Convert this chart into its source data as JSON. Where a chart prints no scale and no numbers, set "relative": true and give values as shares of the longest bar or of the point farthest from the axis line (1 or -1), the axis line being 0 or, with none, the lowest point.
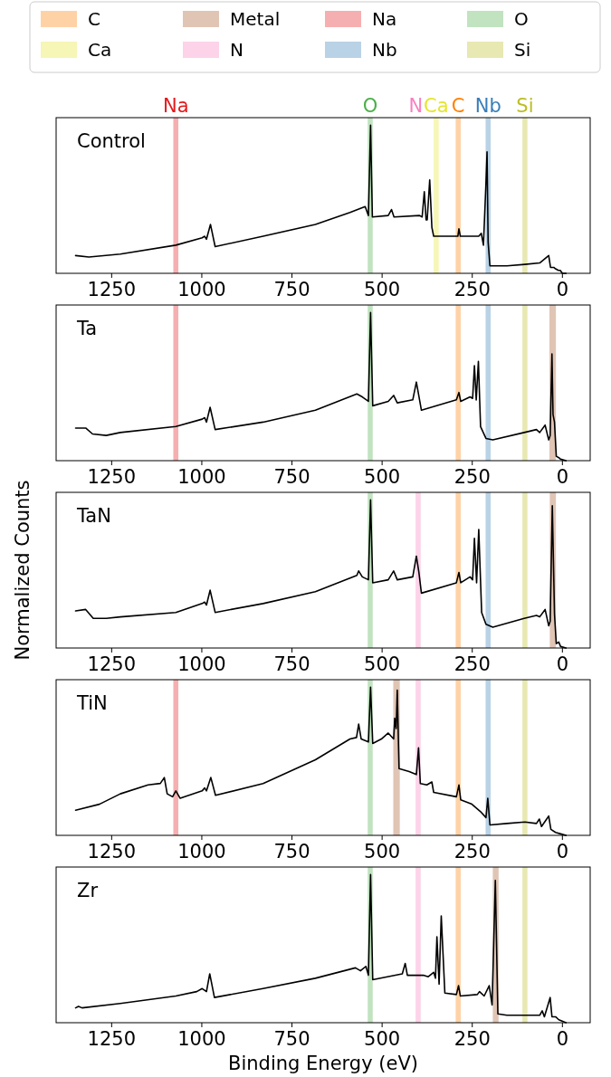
{
  "chart_data": [
    {
      "type": "other",
      "legend": "top",
      "series": [
        {
          "name": "C",
          "color": "#ff7f00"
        },
        {
          "name": "Ca",
          "color": "#e5e52e"
        },
        {
          "name": "Metal",
          "color": "#a65628"
        },
        {
          "name": "N",
          "color": "#f781bf"
        },
        {
          "name": "Na",
          "color": "#e41a1c"
        },
        {
          "name": "Nb",
          "color": "#377eb8"
        },
        {
          "name": "O",
          "color": "#4daf4a"
        },
        {
          "name": "Si",
          "color": "#bcbd22"
        }
      ]
    },
    {
      "type": "line",
      "title": "Control",
      "relative": true,
      "color": "#000000",
      "xlim": [
        1404,
        -77
      ],
      "xticks": [
        1250,
        1000,
        750,
        500,
        250,
        0
      ],
      "x": [
        1350,
        1313,
        1226,
        1072,
        999,
        992,
        987,
        976,
        963,
        830,
        685,
        589,
        547,
        538,
        532,
        527,
        483,
        474,
        467,
        396,
        389,
        383,
        378,
        375,
        368,
        362,
        357,
        290,
        287,
        283,
        232,
        225,
        219,
        212,
        209,
        206,
        201,
        154,
        104,
        63,
        38,
        33,
        24,
        19,
        11,
        6,
        0,
        -10
      ],
      "values": [
        0.12,
        0.11,
        0.13,
        0.19,
        0.24,
        0.25,
        0.23,
        0.33,
        0.18,
        0.25,
        0.33,
        0.41,
        0.45,
        0.39,
        1.0,
        0.38,
        0.39,
        0.43,
        0.38,
        0.39,
        0.38,
        0.55,
        0.36,
        0.36,
        0.63,
        0.31,
        0.25,
        0.25,
        0.3,
        0.25,
        0.25,
        0.27,
        0.19,
        0.61,
        0.82,
        0.21,
        0.05,
        0.05,
        0.06,
        0.07,
        0.12,
        0.04,
        0.04,
        0.03,
        0.02,
        0.02,
        0.0,
        0.0
      ],
      "bands": [
        {
          "axis": "x",
          "from": 1065,
          "to": 1079,
          "label": "Na",
          "color": "#e41a1c"
        },
        {
          "axis": "x",
          "from": 526,
          "to": 540,
          "label": "O",
          "color": "#4daf4a"
        },
        {
          "axis": "x",
          "from": 343,
          "to": 357,
          "label": "Ca",
          "color": "#e5e52e"
        },
        {
          "axis": "x",
          "from": 282,
          "to": 296,
          "label": "C",
          "color": "#ff7f00"
        },
        {
          "axis": "x",
          "from": 199,
          "to": 213,
          "label": "Nb",
          "color": "#377eb8"
        },
        {
          "axis": "x",
          "from": 97,
          "to": 111,
          "label": "Si",
          "color": "#bcbd22"
        }
      ],
      "annotations": [
        "N"
      ]
    },
    {
      "type": "line",
      "title": "Ta",
      "relative": true,
      "color": "#000000",
      "xlim": [
        1404,
        -77
      ],
      "xticks": [
        1250,
        1000,
        750,
        500,
        250,
        0
      ],
      "x": [
        1350,
        1322,
        1303,
        1265,
        1226,
        1072,
        999,
        992,
        987,
        977,
        963,
        830,
        685,
        570,
        555,
        538,
        532,
        526,
        483,
        468,
        458,
        415,
        405,
        391,
        294,
        287,
        282,
        256,
        249,
        244,
        239,
        233,
        227,
        212,
        193,
        106,
        72,
        63,
        48,
        38,
        34,
        29,
        26,
        22,
        17,
        10,
        5,
        -10
      ],
      "values": [
        0.22,
        0.22,
        0.18,
        0.17,
        0.19,
        0.23,
        0.28,
        0.29,
        0.26,
        0.36,
        0.21,
        0.26,
        0.34,
        0.45,
        0.43,
        0.4,
        1.0,
        0.37,
        0.4,
        0.44,
        0.39,
        0.41,
        0.53,
        0.34,
        0.41,
        0.46,
        0.4,
        0.43,
        0.42,
        0.64,
        0.41,
        0.67,
        0.23,
        0.15,
        0.14,
        0.19,
        0.21,
        0.19,
        0.24,
        0.14,
        0.17,
        0.72,
        0.31,
        0.26,
        0.03,
        0.02,
        0.01,
        0.0
      ],
      "bands": [
        {
          "axis": "x",
          "from": 1065,
          "to": 1079,
          "color": "#e41a1c"
        },
        {
          "axis": "x",
          "from": 526,
          "to": 540,
          "color": "#4daf4a"
        },
        {
          "axis": "x",
          "from": 282,
          "to": 296,
          "color": "#ff7f00"
        },
        {
          "axis": "x",
          "from": 199,
          "to": 213,
          "color": "#377eb8"
        },
        {
          "axis": "x",
          "from": 97,
          "to": 111,
          "color": "#bcbd22"
        },
        {
          "axis": "x",
          "from": 18,
          "to": 36,
          "color": "#a65628"
        }
      ]
    },
    {
      "type": "line",
      "title": "TaN",
      "ylabel": "Normalized Counts",
      "relative": true,
      "color": "#000000",
      "xlim": [
        1404,
        -77
      ],
      "xticks": [
        1250,
        1000,
        750,
        500,
        250,
        0
      ],
      "x": [
        1350,
        1322,
        1301,
        1265,
        1226,
        1072,
        999,
        992,
        987,
        977,
        963,
        830,
        685,
        570,
        565,
        555,
        538,
        532,
        526,
        483,
        468,
        458,
        415,
        405,
        398,
        391,
        294,
        287,
        282,
        256,
        249,
        244,
        238,
        232,
        224,
        212,
        193,
        106,
        72,
        63,
        48,
        38,
        34,
        28,
        22,
        17,
        10,
        5,
        -10
      ],
      "values": [
        0.25,
        0.26,
        0.2,
        0.2,
        0.21,
        0.24,
        0.3,
        0.31,
        0.29,
        0.39,
        0.24,
        0.3,
        0.38,
        0.49,
        0.52,
        0.48,
        0.46,
        1.0,
        0.44,
        0.46,
        0.52,
        0.46,
        0.48,
        0.62,
        0.51,
        0.37,
        0.44,
        0.51,
        0.44,
        0.48,
        0.46,
        0.74,
        0.44,
        0.8,
        0.24,
        0.16,
        0.14,
        0.2,
        0.22,
        0.21,
        0.26,
        0.15,
        0.18,
        0.96,
        0.23,
        0.03,
        0.04,
        0.01,
        0.0
      ],
      "bands": [
        {
          "axis": "x",
          "from": 526,
          "to": 540,
          "color": "#4daf4a"
        },
        {
          "axis": "x",
          "from": 393,
          "to": 407,
          "color": "#f781bf"
        },
        {
          "axis": "x",
          "from": 282,
          "to": 296,
          "color": "#ff7f00"
        },
        {
          "axis": "x",
          "from": 199,
          "to": 213,
          "color": "#377eb8"
        },
        {
          "axis": "x",
          "from": 97,
          "to": 111,
          "color": "#bcbd22"
        },
        {
          "axis": "x",
          "from": 18,
          "to": 35,
          "color": "#a65628"
        }
      ]
    },
    {
      "type": "line",
      "title": "TiN",
      "relative": true,
      "color": "#000000",
      "xlim": [
        1404,
        -77
      ],
      "xticks": [
        1250,
        1000,
        750,
        500,
        250,
        0
      ],
      "x": [
        1350,
        1284,
        1226,
        1149,
        1115,
        1104,
        1096,
        1081,
        1072,
        1060,
        999,
        992,
        987,
        975,
        962,
        830,
        685,
        589,
        571,
        565,
        558,
        538,
        532,
        526,
        502,
        483,
        468,
        465,
        461,
        458,
        453,
        425,
        405,
        399,
        394,
        376,
        362,
        357,
        294,
        287,
        282,
        251,
        227,
        212,
        207,
        201,
        154,
        104,
        72,
        64,
        58,
        38,
        32,
        19,
        5,
        -10
      ],
      "values": [
        0.17,
        0.21,
        0.28,
        0.34,
        0.35,
        0.39,
        0.28,
        0.26,
        0.3,
        0.25,
        0.3,
        0.32,
        0.3,
        0.39,
        0.27,
        0.35,
        0.51,
        0.65,
        0.66,
        0.75,
        0.65,
        0.63,
        1.0,
        0.62,
        0.65,
        0.69,
        0.65,
        0.79,
        0.72,
        0.98,
        0.45,
        0.43,
        0.41,
        0.59,
        0.35,
        0.34,
        0.36,
        0.29,
        0.26,
        0.34,
        0.24,
        0.21,
        0.16,
        0.12,
        0.25,
        0.07,
        0.08,
        0.09,
        0.08,
        0.11,
        0.06,
        0.13,
        0.04,
        0.02,
        0.01,
        0.0
      ],
      "bands": [
        {
          "axis": "x",
          "from": 1065,
          "to": 1079,
          "color": "#e41a1c"
        },
        {
          "axis": "x",
          "from": 526,
          "to": 540,
          "color": "#4daf4a"
        },
        {
          "axis": "x",
          "from": 451,
          "to": 469,
          "color": "#a65628"
        },
        {
          "axis": "x",
          "from": 393,
          "to": 407,
          "color": "#f781bf"
        },
        {
          "axis": "x",
          "from": 282,
          "to": 296,
          "color": "#ff7f00"
        },
        {
          "axis": "x",
          "from": 199,
          "to": 213,
          "color": "#377eb8"
        },
        {
          "axis": "x",
          "from": 97,
          "to": 111,
          "color": "#bcbd22"
        }
      ]
    },
    {
      "type": "line",
      "title": "Zr",
      "xlabel": "Binding Energy (eV)",
      "relative": true,
      "color": "#000000",
      "xlim": [
        1404,
        -77
      ],
      "xticks": [
        1250,
        1000,
        750,
        500,
        250,
        0
      ],
      "x": [
        1350,
        1342,
        1332,
        1226,
        1072,
        1014,
        999,
        987,
        978,
        965,
        830,
        685,
        574,
        560,
        545,
        538,
        532,
        526,
        444,
        436,
        430,
        386,
        372,
        357,
        352,
        348,
        342,
        336,
        326,
        294,
        288,
        283,
        236,
        230,
        217,
        203,
        195,
        186,
        179,
        154,
        104,
        63,
        56,
        50,
        34,
        29,
        19,
        10,
        -10
      ],
      "values": [
        0.1,
        0.11,
        0.1,
        0.13,
        0.18,
        0.21,
        0.23,
        0.21,
        0.33,
        0.17,
        0.23,
        0.3,
        0.37,
        0.35,
        0.38,
        0.32,
        1.0,
        0.29,
        0.33,
        0.4,
        0.32,
        0.32,
        0.31,
        0.34,
        0.3,
        0.58,
        0.26,
        0.72,
        0.2,
        0.19,
        0.25,
        0.18,
        0.19,
        0.21,
        0.18,
        0.25,
        0.12,
        0.96,
        0.06,
        0.05,
        0.05,
        0.05,
        0.08,
        0.04,
        0.17,
        0.04,
        0.04,
        0.02,
        0.0
      ],
      "bands": [
        {
          "axis": "x",
          "from": 526,
          "to": 540,
          "color": "#4daf4a"
        },
        {
          "axis": "x",
          "from": 393,
          "to": 407,
          "color": "#f781bf"
        },
        {
          "axis": "x",
          "from": 282,
          "to": 296,
          "color": "#ff7f00"
        },
        {
          "axis": "x",
          "from": 177,
          "to": 193,
          "color": "#a65628"
        },
        {
          "axis": "x",
          "from": 97,
          "to": 111,
          "color": "#bcbd22"
        }
      ]
    }
  ]
}
